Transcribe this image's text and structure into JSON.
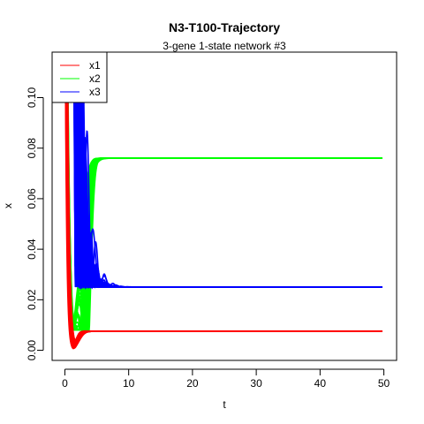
{
  "chart_data": {
    "type": "line",
    "title": "N3-T100-Trajectory",
    "subtitle": "3-gene 1-state network #3",
    "xlabel": "t",
    "ylabel": "x",
    "xlim": [
      -2,
      52
    ],
    "ylim": [
      -0.004,
      0.118
    ],
    "x_ticks": [
      0,
      10,
      20,
      30,
      40,
      50
    ],
    "y_ticks": [
      0.0,
      0.02,
      0.04,
      0.06,
      0.08,
      0.1
    ],
    "y_tick_labels": [
      "0.00",
      "0.02",
      "0.04",
      "0.06",
      "0.08",
      "0.10"
    ],
    "grid": false,
    "legend_position": "top-left",
    "trajectory_count": 100,
    "series": [
      {
        "name": "x1",
        "color": "#ff0000",
        "steady_state": 0.0075,
        "transient_min": 0.0,
        "settle_time": 3.0
      },
      {
        "name": "x2",
        "color": "#00ff00",
        "steady_state": 0.076,
        "transient_min": 0.015,
        "settle_time": 5.0
      },
      {
        "name": "x3",
        "color": "#0000ff",
        "steady_state": 0.025,
        "transient_min": 0.025,
        "settle_time": 4.5
      }
    ]
  }
}
